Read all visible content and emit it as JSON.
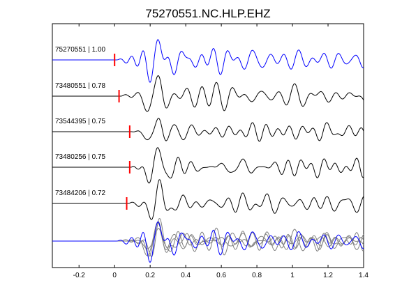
{
  "chart_data": {
    "type": "line",
    "title": "75270551.NC.HLP.EHZ",
    "xlabel": "",
    "ylabel": "",
    "xlim": [
      -0.35,
      1.4
    ],
    "xticks": [
      -0.2,
      0,
      0.2,
      0.4,
      0.6,
      0.8,
      1,
      1.2,
      1.4
    ],
    "xtick_labels": [
      "-0.2",
      "0",
      "0.2",
      "0.4",
      "0.6",
      "0.8",
      "1",
      "1.2",
      "1.4"
    ],
    "grid": false,
    "colors": {
      "master": "#0000ff",
      "trace": "#000000",
      "stack": "#808080",
      "pick": "#ff0000"
    },
    "series": [
      {
        "name": "75270551 | 1.00",
        "id": "75270551",
        "cc": 1.0,
        "pick_time": 0.0,
        "color": "#0000ff"
      },
      {
        "name": "73480551 | 0.78",
        "id": "73480551",
        "cc": 0.78,
        "pick_time": 0.025,
        "color": "#000000"
      },
      {
        "name": "73544395 | 0.75",
        "id": "73544395",
        "cc": 0.75,
        "pick_time": 0.085,
        "color": "#000000"
      },
      {
        "name": "73480256 | 0.75",
        "id": "73480256",
        "cc": 0.75,
        "pick_time": 0.085,
        "color": "#000000"
      },
      {
        "name": "73484206 | 0.72",
        "id": "73484206",
        "cc": 0.72,
        "pick_time": 0.068,
        "color": "#000000"
      }
    ]
  }
}
